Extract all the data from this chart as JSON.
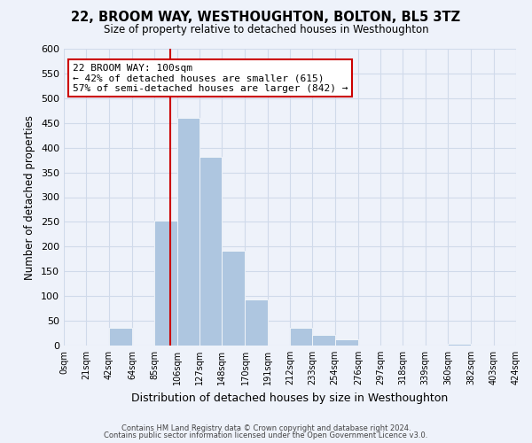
{
  "title": "22, BROOM WAY, WESTHOUGHTON, BOLTON, BL5 3TZ",
  "subtitle": "Size of property relative to detached houses in Westhoughton",
  "xlabel": "Distribution of detached houses by size in Westhoughton",
  "ylabel": "Number of detached properties",
  "bin_edges": [
    0,
    21,
    42,
    64,
    85,
    106,
    127,
    148,
    170,
    191,
    212,
    233,
    254,
    276,
    297,
    318,
    339,
    360,
    382,
    403,
    424
  ],
  "bin_labels": [
    "0sqm",
    "21sqm",
    "42sqm",
    "64sqm",
    "85sqm",
    "106sqm",
    "127sqm",
    "148sqm",
    "170sqm",
    "191sqm",
    "212sqm",
    "233sqm",
    "254sqm",
    "276sqm",
    "297sqm",
    "318sqm",
    "339sqm",
    "360sqm",
    "382sqm",
    "403sqm",
    "424sqm"
  ],
  "counts": [
    0,
    0,
    35,
    0,
    252,
    460,
    381,
    192,
    93,
    0,
    35,
    22,
    13,
    0,
    0,
    0,
    0,
    3,
    0,
    0
  ],
  "bar_color": "#aec6e0",
  "grid_color": "#d0daea",
  "background_color": "#eef2fa",
  "property_line_x": 100,
  "property_line_color": "#cc0000",
  "annotation_line1": "22 BROOM WAY: 100sqm",
  "annotation_line2": "← 42% of detached houses are smaller (615)",
  "annotation_line3": "57% of semi-detached houses are larger (842) →",
  "annotation_box_color": "#ffffff",
  "annotation_box_edge": "#cc0000",
  "ylim": [
    0,
    600
  ],
  "yticks": [
    0,
    50,
    100,
    150,
    200,
    250,
    300,
    350,
    400,
    450,
    500,
    550,
    600
  ],
  "footer_line1": "Contains HM Land Registry data © Crown copyright and database right 2024.",
  "footer_line2": "Contains public sector information licensed under the Open Government Licence v3.0."
}
